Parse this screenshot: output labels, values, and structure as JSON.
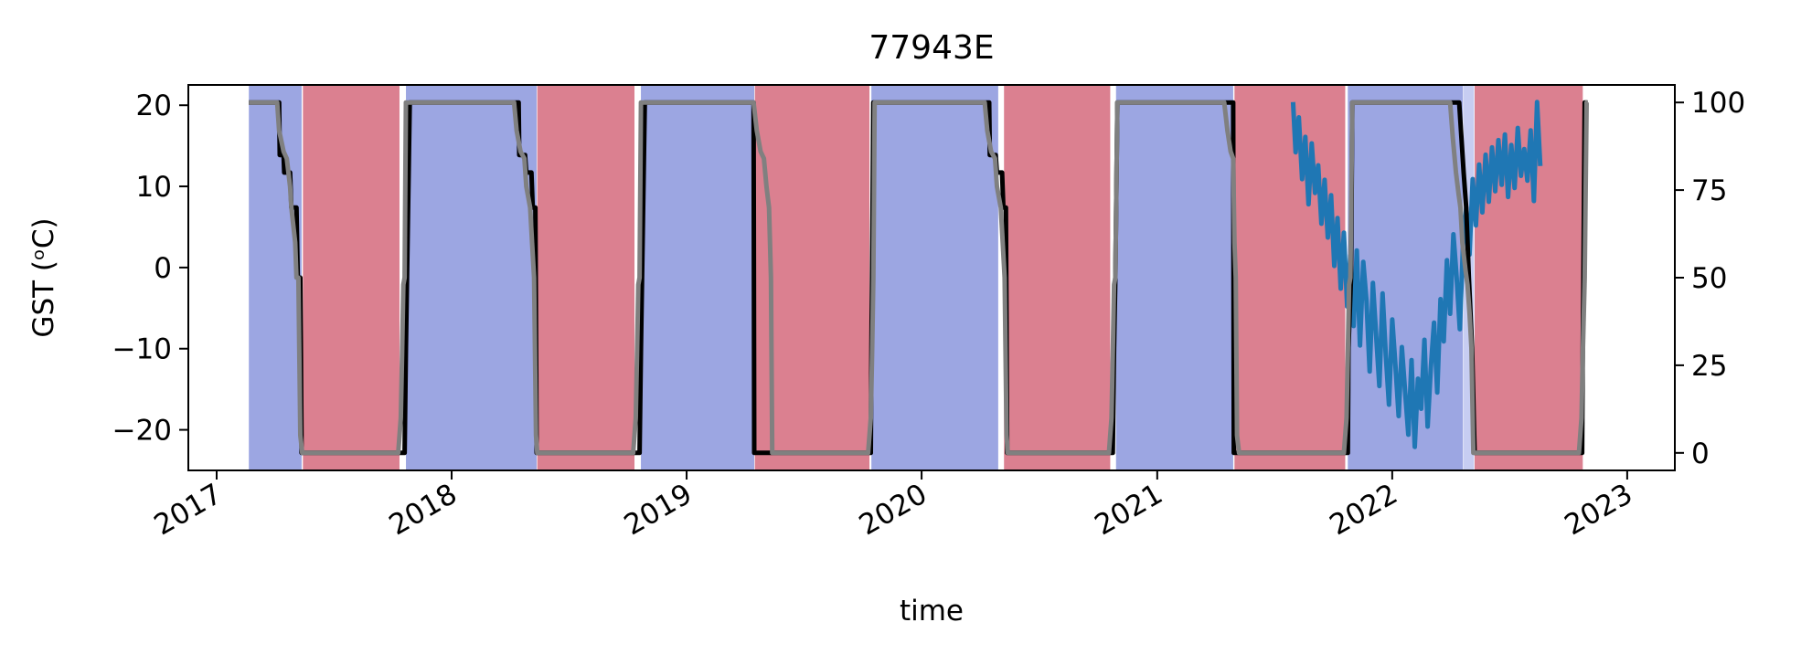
{
  "chart_data": {
    "type": "line",
    "title": "77943E",
    "xlabel": "time",
    "ylabel": "GST (ᵒC)",
    "xlim": [
      "2016-11-18",
      "2023-03-16"
    ],
    "ylim": [
      -25,
      22.5
    ],
    "y2lim": [
      -5,
      105
    ],
    "x_ticks": [
      {
        "date": "2017-01-01",
        "label": "2017"
      },
      {
        "date": "2018-01-01",
        "label": "2018"
      },
      {
        "date": "2019-01-01",
        "label": "2019"
      },
      {
        "date": "2020-01-01",
        "label": "2020"
      },
      {
        "date": "2021-01-01",
        "label": "2021"
      },
      {
        "date": "2022-01-01",
        "label": "2022"
      },
      {
        "date": "2023-01-01",
        "label": "2023"
      }
    ],
    "y_ticks": [
      -20,
      -10,
      0,
      10,
      20
    ],
    "y_tick_labels": [
      "−20",
      "−10",
      "0",
      "10",
      "20"
    ],
    "y2_ticks": [
      0,
      25,
      50,
      75,
      100
    ],
    "y2_tick_labels": [
      "0",
      "25",
      "50",
      "75",
      "100"
    ],
    "grid": false,
    "bands": [
      {
        "start": "2017-02-20",
        "end": "2017-05-13",
        "type": "frozen",
        "color": "#9ca6e2"
      },
      {
        "start": "2017-05-15",
        "end": "2017-10-12",
        "type": "thawed",
        "color": "#db8090"
      },
      {
        "start": "2017-10-22",
        "end": "2018-05-13",
        "type": "frozen",
        "color": "#9ca6e2"
      },
      {
        "start": "2018-05-14",
        "end": "2018-10-12",
        "type": "thawed",
        "color": "#db8090"
      },
      {
        "start": "2018-10-22",
        "end": "2019-04-16",
        "type": "frozen",
        "color": "#9ca6e2"
      },
      {
        "start": "2019-04-17",
        "end": "2019-10-12",
        "type": "thawed",
        "color": "#db8090"
      },
      {
        "start": "2019-10-15",
        "end": "2020-04-29",
        "type": "frozen",
        "color": "#9ca6e2"
      },
      {
        "start": "2020-05-08",
        "end": "2020-10-20",
        "type": "thawed",
        "color": "#db8090"
      },
      {
        "start": "2020-10-29",
        "end": "2021-04-29",
        "type": "frozen",
        "color": "#9ca6e2"
      },
      {
        "start": "2021-05-01",
        "end": "2021-10-20",
        "type": "thawed",
        "color": "#db8090"
      },
      {
        "start": "2021-10-24",
        "end": "2022-04-21",
        "type": "frozen",
        "color": "#9ca6e2"
      },
      {
        "start": "2022-04-22",
        "end": "2022-05-08",
        "type": "transition",
        "color": "#c7cdf2"
      },
      {
        "start": "2022-05-09",
        "end": "2022-10-24",
        "type": "thawed",
        "color": "#db8090"
      }
    ],
    "series": [
      {
        "color": "#1f77b4",
        "axis": "left",
        "x": [
          "2021-07-31",
          "2021-08-04",
          "2021-08-09",
          "2021-08-14",
          "2021-08-19",
          "2021-08-24",
          "2021-08-29",
          "2021-09-03",
          "2021-09-08",
          "2021-09-13",
          "2021-09-18",
          "2021-09-23",
          "2021-09-28",
          "2021-10-03",
          "2021-10-08",
          "2021-10-13",
          "2021-10-18",
          "2021-10-23",
          "2021-10-28",
          "2021-11-02",
          "2021-11-07",
          "2021-11-12",
          "2021-11-17",
          "2021-11-22",
          "2021-11-27",
          "2021-12-02",
          "2021-12-07",
          "2021-12-12",
          "2021-12-17",
          "2021-12-22",
          "2021-12-27",
          "2022-01-01",
          "2022-01-06",
          "2022-01-11",
          "2022-01-16",
          "2022-01-21",
          "2022-01-26",
          "2022-01-31",
          "2022-02-05",
          "2022-02-10",
          "2022-02-15",
          "2022-02-20",
          "2022-02-25",
          "2022-03-02",
          "2022-03-07",
          "2022-03-12",
          "2022-03-17",
          "2022-03-22",
          "2022-03-27",
          "2022-04-01",
          "2022-04-06",
          "2022-04-11",
          "2022-04-16",
          "2022-04-21",
          "2022-04-26",
          "2022-05-01",
          "2022-05-06",
          "2022-05-11",
          "2022-05-16",
          "2022-05-21",
          "2022-05-26",
          "2022-05-31",
          "2022-06-05",
          "2022-06-10",
          "2022-06-15",
          "2022-06-20",
          "2022-06-25",
          "2022-06-30",
          "2022-07-05",
          "2022-07-10",
          "2022-07-15",
          "2022-07-20",
          "2022-07-25",
          "2022-07-30",
          "2022-08-04",
          "2022-08-09",
          "2022-08-14",
          "2022-08-19"
        ],
        "values": [
          20.4,
          14.2,
          18.5,
          10.9,
          16.1,
          7.8,
          15.3,
          9.2,
          12.6,
          5.4,
          10.8,
          3.7,
          8.9,
          0.2,
          6.1,
          -2.6,
          4.3,
          -4.8,
          1.5,
          -7.2,
          2.1,
          -9.6,
          0.7,
          -4.1,
          -12.8,
          -1.9,
          -8.4,
          -14.6,
          -3.2,
          -10.7,
          -16.9,
          -6.4,
          -12.1,
          -18.3,
          -9.8,
          -15.2,
          -20.6,
          -11.4,
          -22.1,
          -13.7,
          -17.4,
          -8.9,
          -19.6,
          -12.3,
          -6.8,
          -15.4,
          -3.9,
          -9.1,
          0.9,
          -5.7,
          4.1,
          -1.2,
          -7.6,
          2.8,
          7.4,
          1.6,
          10.9,
          5.2,
          12.7,
          6.8,
          13.9,
          8.1,
          14.8,
          9.4,
          15.7,
          10.2,
          16.4,
          8.7,
          15.1,
          9.8,
          17.2,
          11.3,
          14.6,
          10.7,
          16.9,
          8.2,
          20.4,
          12.5
        ]
      },
      {
        "color": "#000000",
        "axis": "right",
        "x": [
          "2017-02-20",
          "2017-04-08",
          "2017-04-09",
          "2017-04-15",
          "2017-04-16",
          "2017-04-25",
          "2017-04-27",
          "2017-05-05",
          "2017-05-07",
          "2017-05-11",
          "2017-05-13",
          "2017-10-20",
          "2017-10-22",
          "2017-10-28",
          "2018-04-15",
          "2018-04-16",
          "2018-04-25",
          "2018-04-27",
          "2018-05-05",
          "2018-05-07",
          "2018-05-11",
          "2018-05-13",
          "2018-10-20",
          "2018-10-22",
          "2018-10-28",
          "2019-04-15",
          "2019-04-16",
          "2019-10-14",
          "2019-10-15",
          "2019-10-16",
          "2019-10-18",
          "2020-04-15",
          "2020-04-16",
          "2020-04-25",
          "2020-04-27",
          "2020-05-05",
          "2020-05-07",
          "2020-05-11",
          "2020-05-13",
          "2020-10-24",
          "2020-10-26",
          "2020-10-28",
          "2020-10-31",
          "2021-04-29",
          "2021-04-30",
          "2021-10-24",
          "2021-10-25",
          "2021-10-29",
          "2021-10-31",
          "2022-04-15",
          "2022-04-22",
          "2022-04-26",
          "2022-04-30",
          "2022-05-05",
          "2022-05-09",
          "2022-10-23",
          "2022-10-24",
          "2022-10-25",
          "2022-10-27",
          "2022-10-31"
        ],
        "values": [
          100,
          100,
          85,
          85,
          80,
          80,
          70,
          70,
          50,
          50,
          0,
          0,
          30,
          100,
          100,
          85,
          85,
          80,
          80,
          70,
          70,
          0,
          0,
          30,
          100,
          100,
          0,
          0,
          30,
          50,
          100,
          100,
          85,
          85,
          80,
          80,
          70,
          70,
          0,
          0,
          30,
          50,
          100,
          100,
          0,
          0,
          30,
          50,
          100,
          100,
          80,
          70,
          50,
          30,
          0,
          0,
          30,
          50,
          100,
          100
        ]
      },
      {
        "color": "#808080",
        "axis": "right",
        "x": [
          "2017-02-20",
          "2017-04-05",
          "2017-04-08",
          "2017-04-15",
          "2017-04-20",
          "2017-04-25",
          "2017-04-27",
          "2017-05-03",
          "2017-05-05",
          "2017-05-08",
          "2017-05-11",
          "2017-05-14",
          "2017-10-10",
          "2017-10-14",
          "2017-10-16",
          "2017-10-18",
          "2017-10-20",
          "2017-10-22",
          "2017-10-26",
          "2018-04-08",
          "2018-04-12",
          "2018-04-18",
          "2018-04-24",
          "2018-04-27",
          "2018-05-03",
          "2018-05-06",
          "2018-05-09",
          "2018-05-12",
          "2018-05-14",
          "2018-10-10",
          "2018-10-14",
          "2018-10-16",
          "2018-10-18",
          "2018-10-20",
          "2018-10-22",
          "2018-10-26",
          "2019-04-15",
          "2019-04-20",
          "2019-04-26",
          "2019-05-01",
          "2019-05-05",
          "2019-05-09",
          "2019-05-12",
          "2019-05-14",
          "2019-10-10",
          "2019-10-14",
          "2019-10-16",
          "2019-10-18",
          "2019-10-20",
          "2019-10-24",
          "2020-04-08",
          "2020-04-12",
          "2020-04-18",
          "2020-04-24",
          "2020-04-27",
          "2020-05-03",
          "2020-05-06",
          "2020-05-09",
          "2020-05-12",
          "2020-05-14",
          "2020-10-18",
          "2020-10-22",
          "2020-10-24",
          "2020-10-26",
          "2020-10-28",
          "2020-10-31",
          "2021-04-15",
          "2021-04-20",
          "2021-04-25",
          "2021-04-29",
          "2021-05-01",
          "2021-05-03",
          "2021-05-05",
          "2021-05-08",
          "2021-10-18",
          "2021-10-22",
          "2021-10-24",
          "2021-10-26",
          "2021-10-28",
          "2021-10-31",
          "2022-04-01",
          "2022-04-05",
          "2022-04-10",
          "2022-04-14",
          "2022-04-17",
          "2022-04-20",
          "2022-04-25",
          "2022-04-28",
          "2022-05-01",
          "2022-05-04",
          "2022-05-07",
          "2022-10-18",
          "2022-10-22",
          "2022-10-24",
          "2022-10-27",
          "2022-10-30",
          "2022-11-01"
        ],
        "values": [
          100,
          100,
          92,
          86,
          84,
          76,
          70,
          60,
          50,
          50,
          5,
          0,
          0,
          10,
          28,
          48,
          50,
          100,
          100,
          100,
          92,
          86,
          84,
          76,
          70,
          60,
          50,
          5,
          0,
          0,
          10,
          28,
          48,
          50,
          100,
          100,
          100,
          92,
          86,
          84,
          76,
          70,
          50,
          0,
          0,
          10,
          28,
          50,
          100,
          100,
          100,
          92,
          86,
          84,
          76,
          70,
          60,
          50,
          5,
          0,
          0,
          10,
          28,
          48,
          50,
          100,
          100,
          92,
          86,
          84,
          60,
          50,
          5,
          0,
          0,
          10,
          28,
          48,
          50,
          100,
          100,
          90,
          80,
          74,
          70,
          60,
          52,
          48,
          40,
          30,
          0,
          0,
          10,
          28,
          50,
          100,
          100
        ]
      }
    ]
  }
}
